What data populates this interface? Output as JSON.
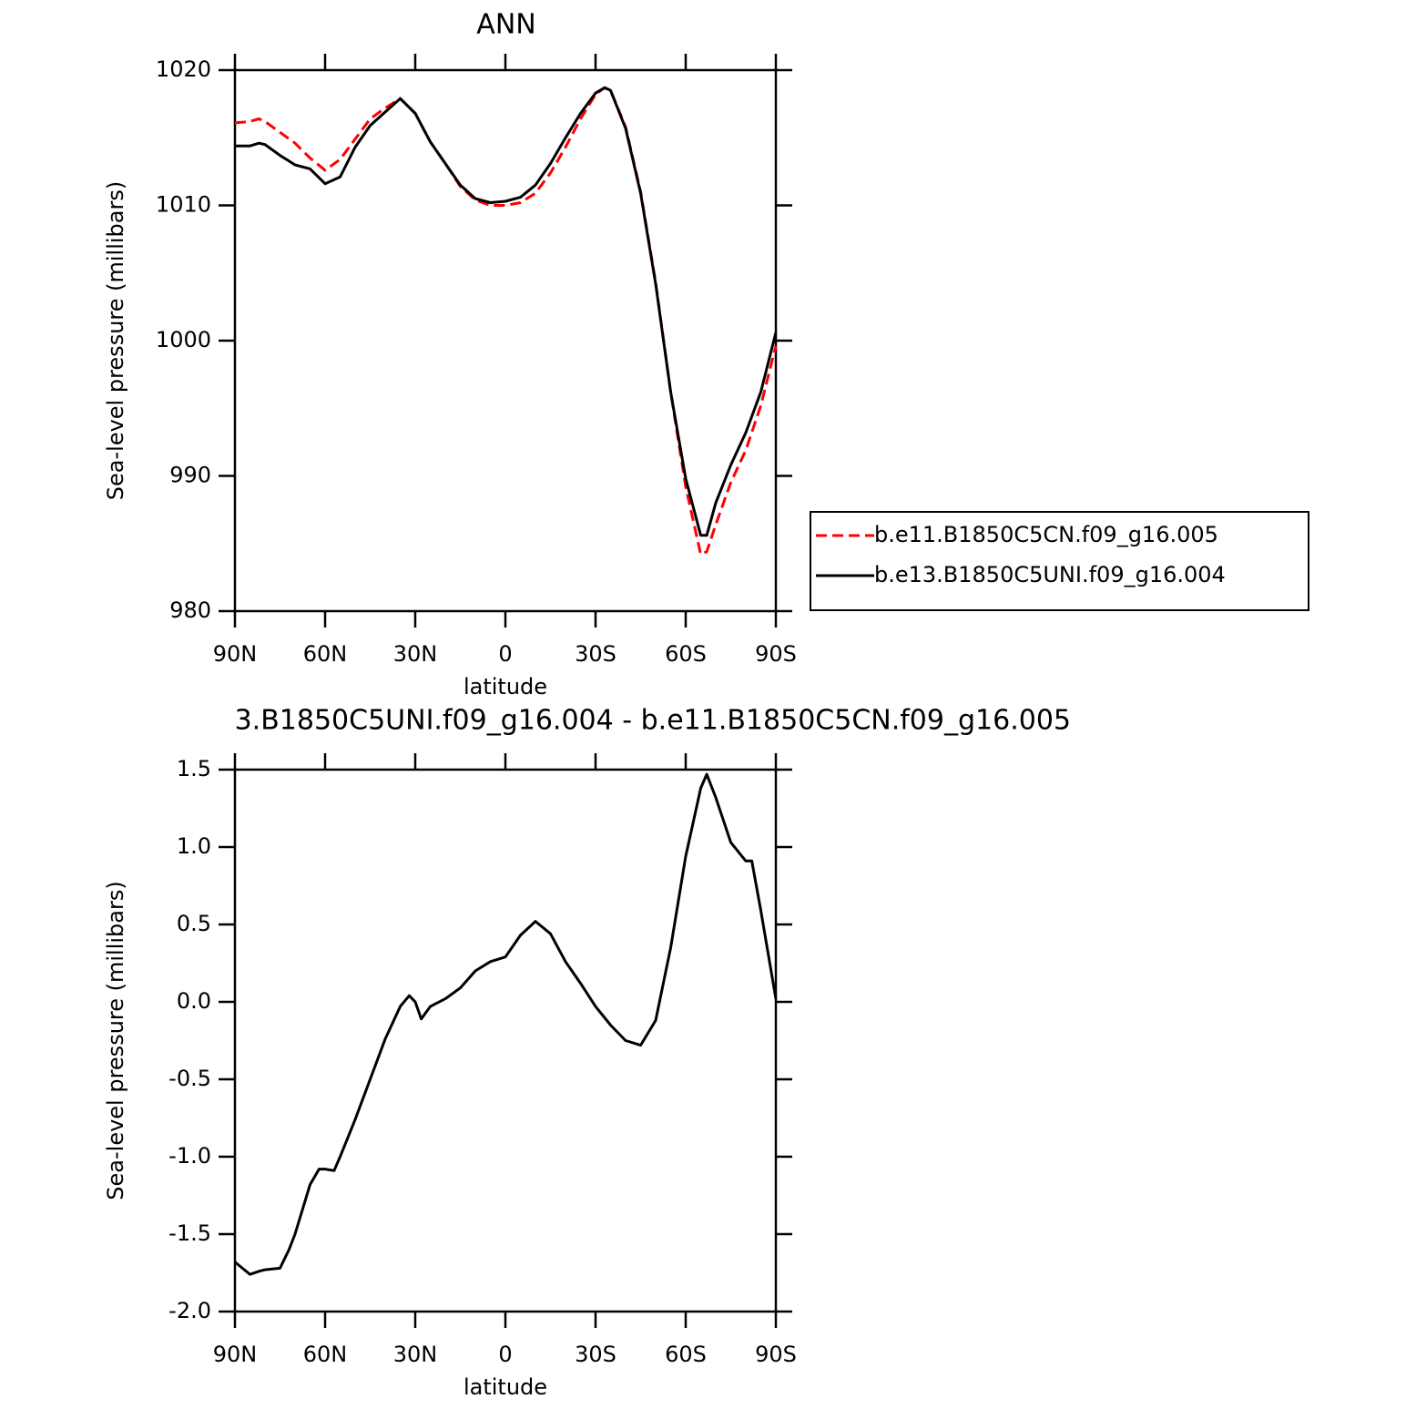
{
  "chart_data": [
    {
      "type": "line",
      "title": "ANN",
      "xlabel": "latitude",
      "ylabel": "Sea-level pressure (millibars)",
      "x": [
        90,
        85,
        82,
        80,
        75,
        70,
        65,
        60,
        55,
        50,
        45,
        40,
        35,
        30,
        25,
        20,
        15,
        10,
        5,
        0,
        -5,
        -10,
        -15,
        -20,
        -25,
        -30,
        -33,
        -35,
        -40,
        -45,
        -50,
        -55,
        -60,
        -65,
        -67,
        -70,
        -75,
        -80,
        -85,
        -90
      ],
      "series": [
        {
          "name": "b.e11.B1850C5CN.f09_g16.005",
          "color": "#ff0000",
          "line_style": "dashed",
          "values": [
            1016.1,
            1016.2,
            1016.4,
            1016.2,
            1015.4,
            1014.6,
            1013.5,
            1012.6,
            1013.4,
            1014.9,
            1016.4,
            1017.2,
            1017.9,
            1016.8,
            1014.7,
            1013.1,
            1011.4,
            1010.4,
            1010.0,
            1010.0,
            1010.2,
            1010.9,
            1012.4,
            1014.3,
            1016.4,
            1018.2,
            1018.7,
            1018.5,
            1015.8,
            1011.0,
            1004.3,
            996.2,
            989.2,
            984.2,
            984.4,
            986.4,
            989.5,
            991.9,
            995.2,
            999.6
          ]
        },
        {
          "name": "b.e13.B1850C5UNI.f09_g16.004",
          "color": "#000000",
          "line_style": "solid",
          "values": [
            1014.4,
            1014.4,
            1014.6,
            1014.5,
            1013.7,
            1013.0,
            1012.7,
            1011.6,
            1012.1,
            1014.3,
            1015.9,
            1016.9,
            1017.9,
            1016.8,
            1014.7,
            1013.1,
            1011.5,
            1010.5,
            1010.2,
            1010.3,
            1010.6,
            1011.5,
            1013.1,
            1015.0,
            1016.8,
            1018.3,
            1018.7,
            1018.5,
            1015.7,
            1010.9,
            1004.2,
            996.2,
            989.8,
            985.6,
            985.6,
            988.0,
            990.8,
            993.2,
            996.2,
            1000.6
          ]
        }
      ],
      "xlim": [
        90,
        -90
      ],
      "xticks": [
        {
          "value": 90,
          "label": "90N"
        },
        {
          "value": 60,
          "label": "60N"
        },
        {
          "value": 30,
          "label": "30N"
        },
        0,
        {
          "value": -30,
          "label": "30S"
        },
        {
          "value": -60,
          "label": "60S"
        },
        {
          "value": -90,
          "label": "90S"
        }
      ],
      "ylim": [
        980,
        1020
      ],
      "yticks": [
        980,
        990,
        1000,
        1010,
        1020
      ],
      "legend": "right",
      "grid": false
    },
    {
      "type": "line",
      "title": "3.B1850C5UNI.f09_g16.004 - b.e11.B1850C5CN.f09_g16.005",
      "xlabel": "latitude",
      "ylabel": "Sea-level pressure (millibars)",
      "x": [
        90,
        85,
        82,
        80,
        75,
        72,
        70,
        65,
        62,
        60,
        57,
        55,
        50,
        45,
        40,
        35,
        32,
        30,
        28,
        25,
        20,
        15,
        10,
        5,
        0,
        -5,
        -10,
        -15,
        -20,
        -25,
        -30,
        -35,
        -40,
        -45,
        -50,
        -55,
        -60,
        -65,
        -67,
        -70,
        -75,
        -80,
        -82,
        -85,
        -90
      ],
      "series": [
        {
          "color": "#000000",
          "line_style": "solid",
          "values": [
            -1.68,
            -1.76,
            -1.74,
            -1.73,
            -1.72,
            -1.6,
            -1.5,
            -1.18,
            -1.08,
            -1.08,
            -1.09,
            -1.0,
            -0.76,
            -0.5,
            -0.24,
            -0.03,
            0.04,
            0.0,
            -0.11,
            -0.03,
            0.02,
            0.09,
            0.2,
            0.26,
            0.29,
            0.43,
            0.52,
            0.44,
            0.26,
            0.12,
            -0.03,
            -0.15,
            -0.25,
            -0.28,
            -0.12,
            0.35,
            0.94,
            1.38,
            1.47,
            1.32,
            1.03,
            0.91,
            0.91,
            0.59,
            0.02
          ]
        }
      ],
      "xlim": [
        90,
        -90
      ],
      "xticks": [
        {
          "value": 90,
          "label": "90N"
        },
        {
          "value": 60,
          "label": "60N"
        },
        {
          "value": 30,
          "label": "30N"
        },
        0,
        {
          "value": -30,
          "label": "30S"
        },
        {
          "value": -60,
          "label": "60S"
        },
        {
          "value": -90,
          "label": "90S"
        }
      ],
      "ylim": [
        -2,
        1.5
      ],
      "yticks": [
        {
          "value": -2,
          "label": "-2.0"
        },
        -1.5,
        {
          "value": -1,
          "label": "-1.0"
        },
        -0.5,
        {
          "value": 0,
          "label": "0.0"
        },
        0.5,
        {
          "value": 1,
          "label": "1.0"
        },
        1.5
      ],
      "grid": false
    }
  ]
}
